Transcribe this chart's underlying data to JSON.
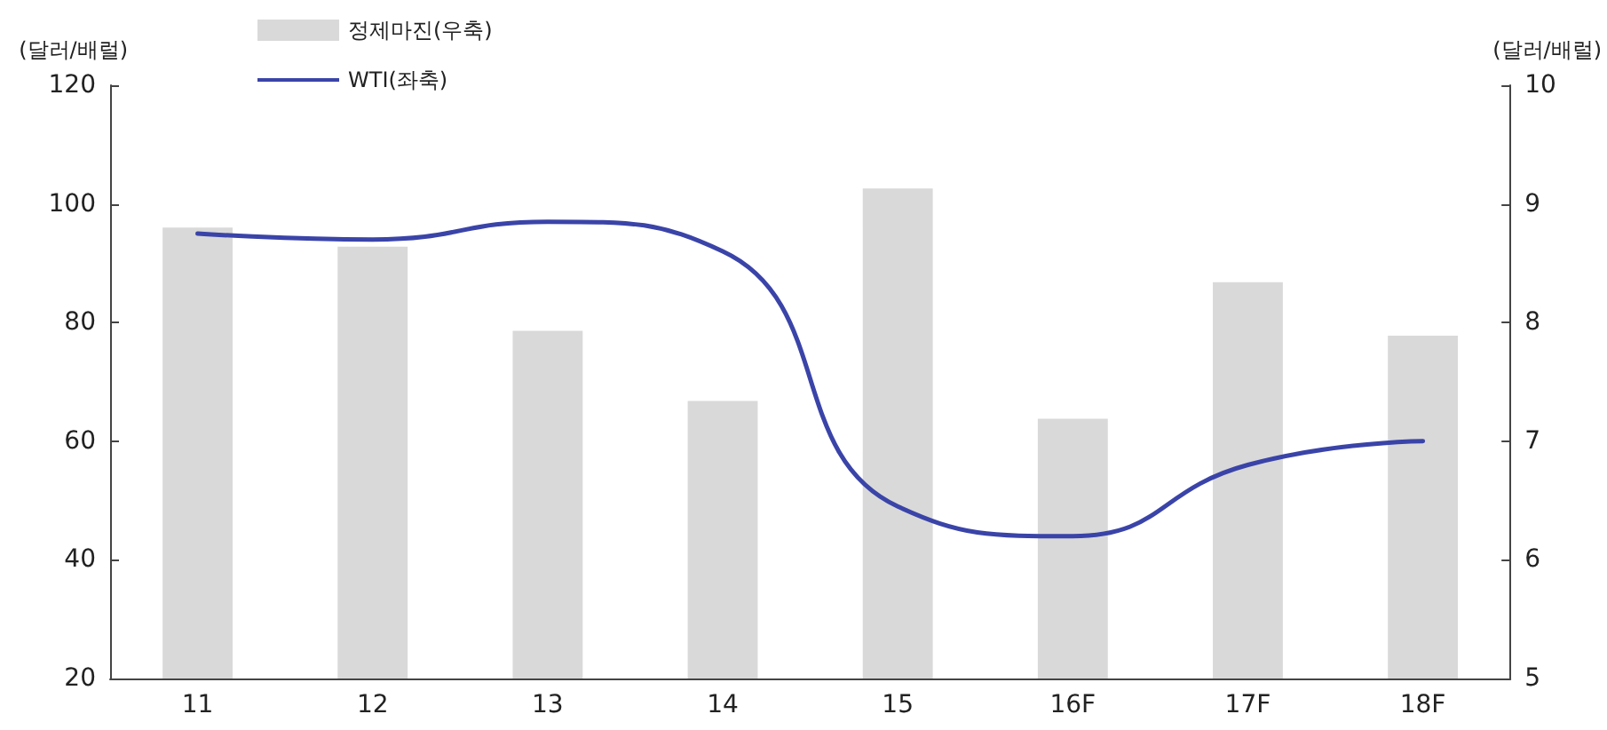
{
  "chart_data": {
    "type": "bar",
    "categories": [
      "11",
      "12",
      "13",
      "14",
      "15",
      "16F",
      "17F",
      "18F"
    ],
    "series": [
      {
        "name": "정제마진(우축)",
        "axis": "y2",
        "color": "#d9d9d9",
        "values": [
          8.8,
          8.64,
          7.93,
          7.34,
          9.13,
          7.19,
          8.34,
          7.89
        ]
      },
      {
        "name": "WTI(좌축)",
        "type": "line",
        "color": "#3a44a8",
        "values": [
          95,
          94,
          97,
          92,
          49,
          44,
          56,
          60
        ]
      }
    ],
    "ylabel": "(달러/배럴)",
    "y2label": "(달러/배럴)",
    "ylim": [
      20,
      120
    ],
    "yticks": [
      20,
      40,
      60,
      80,
      100,
      120
    ],
    "y2lim": [
      5,
      10
    ],
    "y2ticks": [
      5,
      6,
      7,
      8,
      9,
      10
    ],
    "grid": false,
    "legend": "top left",
    "marker": "none",
    "line_style": "solid"
  }
}
